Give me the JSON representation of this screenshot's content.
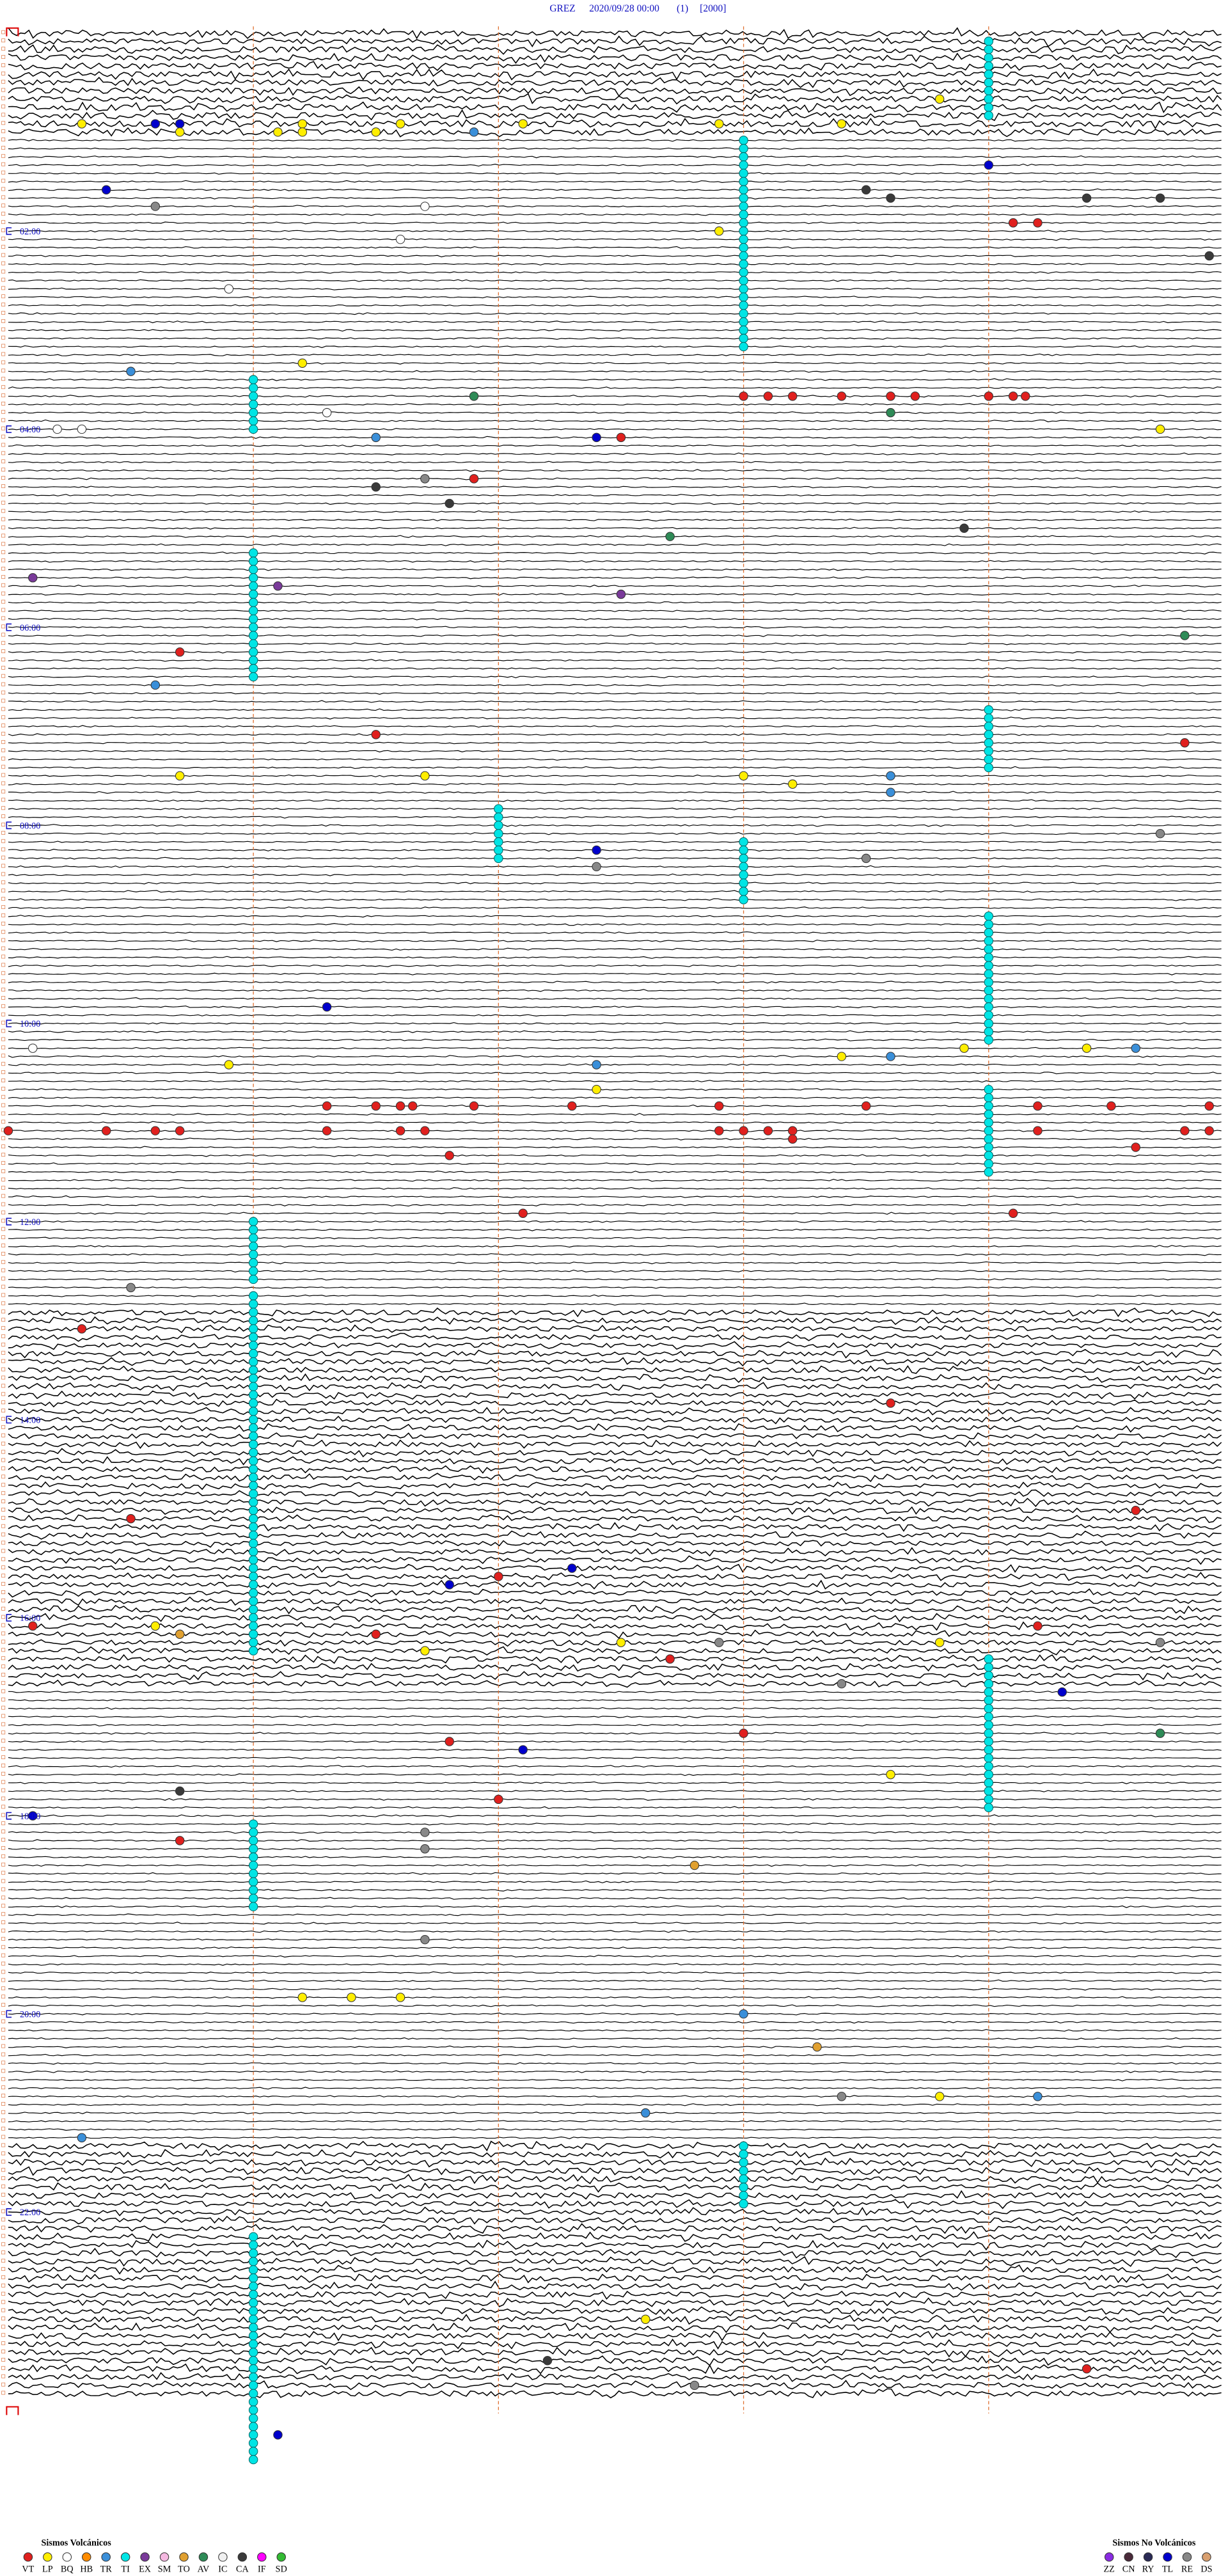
{
  "header": {
    "station": "GREZ",
    "datetime": "2020/09/28 00:00",
    "channel": "(1)",
    "scale": "[2000]"
  },
  "time_labels": [
    {
      "value": 120,
      "label": "02:00"
    },
    {
      "value": 240,
      "label": "04:00"
    },
    {
      "value": 360,
      "label": "06:00"
    },
    {
      "value": 480,
      "label": "08:00"
    },
    {
      "value": 600,
      "label": "10:00"
    },
    {
      "value": 720,
      "label": "12:00"
    },
    {
      "value": 840,
      "label": "14:00"
    },
    {
      "value": 960,
      "label": "16:00"
    },
    {
      "value": 1080,
      "label": "18:00"
    },
    {
      "value": 1200,
      "label": "20:00"
    },
    {
      "value": 1320,
      "label": "22:00"
    }
  ],
  "legend": {
    "volcanic_title": "Sismos Volcánicos",
    "volcanic": [
      {
        "code": "VT",
        "color": "#e0201e"
      },
      {
        "code": "LP",
        "color": "#ffee00"
      },
      {
        "code": "BQ",
        "color": "#ffffff"
      },
      {
        "code": "HB",
        "color": "#ff8c00"
      },
      {
        "code": "TR",
        "color": "#3a8fd9"
      },
      {
        "code": "TI",
        "color": "#00e5e5"
      },
      {
        "code": "EX",
        "color": "#7a3a9a"
      },
      {
        "code": "SM",
        "color": "#f4b8e0"
      },
      {
        "code": "TO",
        "color": "#e0a030"
      },
      {
        "code": "AV",
        "color": "#2e8b57"
      },
      {
        "code": "IC",
        "color": "#f0f0f0"
      },
      {
        "code": "CA",
        "color": "#3a3a3a"
      },
      {
        "code": "IF",
        "color": "#ff00ff"
      },
      {
        "code": "SD",
        "color": "#33bb33"
      }
    ],
    "non_volcanic_title": "Sismos No Volcánicos",
    "non_volcanic": [
      {
        "code": "ZZ",
        "color": "#8a2be2"
      },
      {
        "code": "CN",
        "color": "#4a2a3a"
      },
      {
        "code": "RY",
        "color": "#2a2a55"
      },
      {
        "code": "TL",
        "color": "#0000cc"
      },
      {
        "code": "RE",
        "color": "#888888"
      },
      {
        "code": "DS",
        "color": "#d9a070"
      }
    ]
  },
  "tremor": [
    {
      "start": 9,
      "end": 54
    },
    {
      "start": 68,
      "end": 193
    },
    {
      "start": 211,
      "end": 241
    },
    {
      "start": 316,
      "end": 391
    },
    {
      "start": 414,
      "end": 449
    },
    {
      "start": 472,
      "end": 502
    },
    {
      "start": 493,
      "end": 528
    },
    {
      "start": 539,
      "end": 614
    },
    {
      "start": 644,
      "end": 694
    },
    {
      "start": 721,
      "end": 756
    },
    {
      "start": 766,
      "end": 981
    },
    {
      "start": 989,
      "end": 1079
    },
    {
      "start": 1086,
      "end": 1136
    },
    {
      "start": 1283,
      "end": 1318
    },
    {
      "start": 1336,
      "end": 1436
    },
    {
      "start": 1441,
      "end": 1471
    }
  ],
  "events": [
    {
      "type": "LP",
      "minute": 55.3
    },
    {
      "type": "TL",
      "minute": 55.6
    },
    {
      "type": "TL",
      "minute": 55.7
    },
    {
      "type": "LP",
      "minute": 60.7
    },
    {
      "type": "LP",
      "minute": 61.1
    },
    {
      "type": "LP",
      "minute": 56.2
    },
    {
      "type": "LP",
      "minute": 61.2
    },
    {
      "type": "LP",
      "minute": 61.5
    },
    {
      "type": "LP",
      "minute": 56.6
    },
    {
      "type": "TR",
      "minute": 61.9
    },
    {
      "type": "LP",
      "minute": 57.1
    },
    {
      "type": "LP",
      "minute": 57.9
    },
    {
      "type": "LP",
      "minute": 58.4
    },
    {
      "type": "LP",
      "minute": 43.8
    },
    {
      "type": "TL",
      "minute": 84.0
    },
    {
      "type": "TL",
      "minute": 95.4
    },
    {
      "type": "RE",
      "minute": 105.6
    },
    {
      "type": "CA",
      "minute": 98.5
    },
    {
      "type": "CA",
      "minute": 103.6
    },
    {
      "type": "CA",
      "minute": 104.4
    },
    {
      "type": "CA",
      "minute": 104.7
    },
    {
      "type": "VT",
      "minute": 119.1
    },
    {
      "type": "VT",
      "minute": 119.2
    },
    {
      "type": "CA",
      "minute": 139.9
    },
    {
      "type": "LP",
      "minute": 122.9
    },
    {
      "type": "BQ",
      "minute": 106.7
    },
    {
      "type": "BQ",
      "minute": 126.6
    },
    {
      "type": "BQ",
      "minute": 155.9
    },
    {
      "type": "TR",
      "minute": 205.5
    },
    {
      "type": "LP",
      "minute": 201.2
    },
    {
      "type": "AV",
      "minute": 221.9
    },
    {
      "type": "VT",
      "minute": 223.0
    },
    {
      "type": "VT",
      "minute": 223.1
    },
    {
      "type": "VT",
      "minute": 223.2
    },
    {
      "type": "VT",
      "minute": 223.4
    },
    {
      "type": "VT",
      "minute": 223.6
    },
    {
      "type": "VT",
      "minute": 223.7
    },
    {
      "type": "VT",
      "minute": 224.0
    },
    {
      "type": "VT",
      "minute": 224.1
    },
    {
      "type": "VT",
      "minute": 224.15
    },
    {
      "type": "AV",
      "minute": 233.6
    },
    {
      "type": "BQ",
      "minute": 231.3
    },
    {
      "type": "BQ",
      "minute": 240.2
    },
    {
      "type": "BQ",
      "minute": 240.3
    },
    {
      "type": "LP",
      "minute": 244.7
    },
    {
      "type": "VT",
      "minute": 247.5
    },
    {
      "type": "TL",
      "minute": 247.4
    },
    {
      "type": "TR",
      "minute": 246.5
    },
    {
      "type": "VT",
      "minute": 271.9
    },
    {
      "type": "CA",
      "minute": 276.5
    },
    {
      "type": "RE",
      "minute": 271.7
    },
    {
      "type": "CA",
      "minute": 286.8
    },
    {
      "type": "AV",
      "minute": 307.7
    },
    {
      "type": "CA",
      "minute": 303.9
    },
    {
      "type": "EX",
      "minute": 330.1
    },
    {
      "type": "EX",
      "minute": 336.1
    },
    {
      "type": "EX",
      "minute": 342.5
    },
    {
      "type": "AV",
      "minute": 369.8
    },
    {
      "type": "VT",
      "minute": 375.7
    },
    {
      "type": "TR",
      "minute": 395.6
    },
    {
      "type": "VT",
      "minute": 426.5
    },
    {
      "type": "VT",
      "minute": 434.8
    },
    {
      "type": "LP",
      "minute": 450.7
    },
    {
      "type": "LP",
      "minute": 451.7
    },
    {
      "type": "LP",
      "minute": 453.0
    },
    {
      "type": "LP",
      "minute": 458.2
    },
    {
      "type": "TR",
      "minute": 453.6
    },
    {
      "type": "TR",
      "minute": 463.6
    },
    {
      "type": "TL",
      "minute": 497.4
    },
    {
      "type": "RE",
      "minute": 507.4
    },
    {
      "type": "RE",
      "minute": 503.5
    },
    {
      "type": "RE",
      "minute": 489.7
    },
    {
      "type": "TL",
      "minute": 591.3
    },
    {
      "type": "BQ",
      "minute": 615.1
    },
    {
      "type": "TR",
      "minute": 627.4
    },
    {
      "type": "TR",
      "minute": 623.6
    },
    {
      "type": "TR",
      "minute": 619.6
    },
    {
      "type": "LP",
      "minute": 623.4
    },
    {
      "type": "LP",
      "minute": 618.9
    },
    {
      "type": "LP",
      "minute": 619.4
    },
    {
      "type": "LP",
      "minute": 625.9
    },
    {
      "type": "LP",
      "minute": 642.4
    },
    {
      "type": "VT",
      "minute": 651.3
    },
    {
      "type": "VT",
      "minute": 651.5
    },
    {
      "type": "VT",
      "minute": 651.6
    },
    {
      "type": "VT",
      "minute": 651.65
    },
    {
      "type": "VT",
      "minute": 651.9
    },
    {
      "type": "VT",
      "minute": 652.3
    },
    {
      "type": "VT",
      "minute": 652.9
    },
    {
      "type": "VT",
      "minute": 653.5
    },
    {
      "type": "VT",
      "minute": 654.2
    },
    {
      "type": "VT",
      "minute": 654.5
    },
    {
      "type": "VT",
      "minute": 654.9
    },
    {
      "type": "VT",
      "minute": 665.0
    },
    {
      "type": "VT",
      "minute": 665.4
    },
    {
      "type": "VT",
      "minute": 665.6
    },
    {
      "type": "VT",
      "minute": 665.7
    },
    {
      "type": "VT",
      "minute": 666.3
    },
    {
      "type": "VT",
      "minute": 666.6
    },
    {
      "type": "VT",
      "minute": 666.7
    },
    {
      "type": "VT",
      "minute": 667.9
    },
    {
      "type": "VT",
      "minute": 668.0
    },
    {
      "type": "VT",
      "minute": 668.1
    },
    {
      "type": "VT",
      "minute": 668.2
    },
    {
      "type": "VT",
      "minute": 669.2
    },
    {
      "type": "VT",
      "minute": 669.8
    },
    {
      "type": "VT",
      "minute": 669.9
    },
    {
      "type": "VT",
      "minute": 673.2
    },
    {
      "type": "VT",
      "minute": 679.6
    },
    {
      "type": "VT",
      "minute": 681.8
    },
    {
      "type": "VT",
      "minute": 717.1
    },
    {
      "type": "VT",
      "minute": 719.1
    },
    {
      "type": "RE",
      "minute": 760.5
    },
    {
      "type": "VT",
      "minute": 785.3
    },
    {
      "type": "VT",
      "minute": 833.6
    },
    {
      "type": "VT",
      "minute": 900.5
    },
    {
      "type": "VT",
      "minute": 899.6
    },
    {
      "type": "TL",
      "minute": 941.8
    },
    {
      "type": "VT",
      "minute": 937.0
    },
    {
      "type": "TL",
      "minute": 932.3
    },
    {
      "type": "VT",
      "minute": 965.1
    },
    {
      "type": "LP",
      "minute": 965.6
    },
    {
      "type": "TO",
      "minute": 970.7
    },
    {
      "type": "VT",
      "minute": 971.5
    },
    {
      "type": "LP",
      "minute": 981.7
    },
    {
      "type": "VT",
      "minute": 987.7
    },
    {
      "type": "LP",
      "minute": 977.5
    },
    {
      "type": "RE",
      "minute": 977.9
    },
    {
      "type": "LP",
      "minute": 978.8
    },
    {
      "type": "VT",
      "minute": 969.2
    },
    {
      "type": "RE",
      "minute": 979.7
    },
    {
      "type": "RE",
      "minute": 1003.4
    },
    {
      "type": "TL",
      "minute": 1009.3
    },
    {
      "type": "AV",
      "minute": 1034.7
    },
    {
      "type": "VT",
      "minute": 1036.8
    },
    {
      "type": "TL",
      "minute": 1042.1
    },
    {
      "type": "VT",
      "minute": 1033.0
    },
    {
      "type": "LP",
      "minute": 1058.6
    },
    {
      "type": "VT",
      "minute": 1072.0
    },
    {
      "type": "TL",
      "minute": 1080.1
    },
    {
      "type": "CA",
      "minute": 1065.7
    },
    {
      "type": "VT",
      "minute": 1095.7
    },
    {
      "type": "RE",
      "minute": 1091.7
    },
    {
      "type": "RE",
      "minute": 1101.7
    },
    {
      "type": "TO",
      "minute": 1112.8
    },
    {
      "type": "RE",
      "minute": 1156.7
    },
    {
      "type": "LP",
      "minute": 1191.2
    },
    {
      "type": "LP",
      "minute": 1191.4
    },
    {
      "type": "LP",
      "minute": 1191.6
    },
    {
      "type": "TR",
      "minute": 1203.0
    },
    {
      "type": "TO",
      "minute": 1223.3
    },
    {
      "type": "RE",
      "minute": 1253.4
    },
    {
      "type": "LP",
      "minute": 1253.8
    },
    {
      "type": "TR",
      "minute": 1254.2
    },
    {
      "type": "TR",
      "minute": 1262.6
    },
    {
      "type": "TR",
      "minute": 1275.3
    },
    {
      "type": "LP",
      "minute": 1387.6
    },
    {
      "type": "CA",
      "minute": 1412.2
    },
    {
      "type": "RE",
      "minute": 1427.8
    },
    {
      "type": "VT",
      "minute": 1419.4
    },
    {
      "type": "TL",
      "minute": 1456.1
    }
  ]
}
